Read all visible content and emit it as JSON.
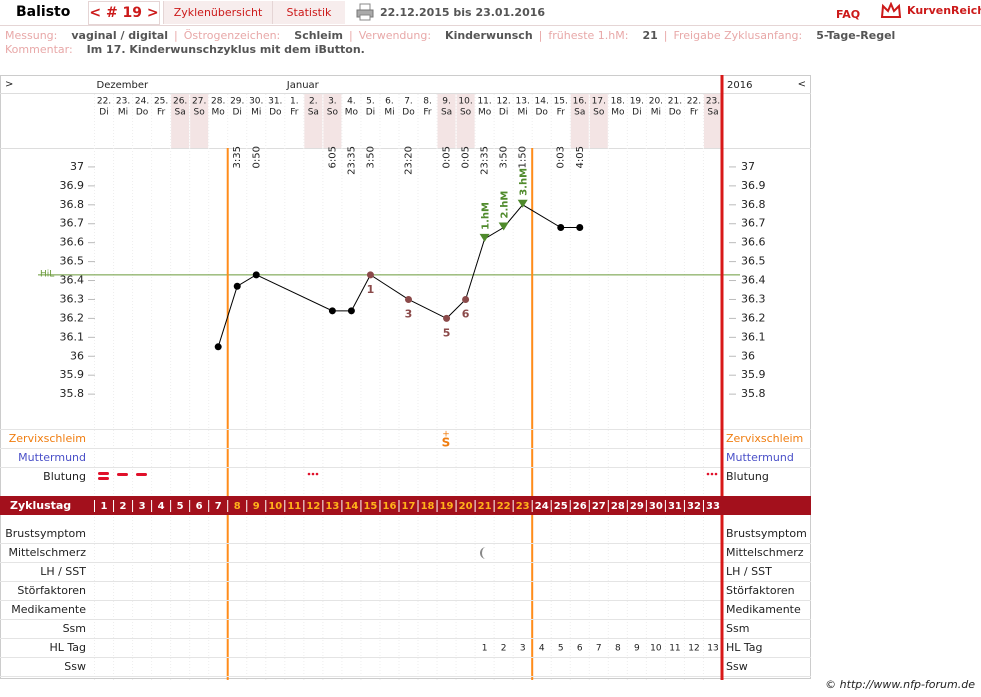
{
  "header": {
    "user": "Balisto",
    "cycle": "< # 19 >",
    "tabs": [
      "Zyklenübersicht",
      "Statistik"
    ],
    "range": "22.12.2015 bis 23.01.2016",
    "faq": "FAQ",
    "logo": "KurvenReich"
  },
  "info": {
    "items": [
      {
        "label": "Messung:",
        "value": "vaginal / digital"
      },
      {
        "label": "Östrogenzeichen:",
        "value": "Schleim"
      },
      {
        "label": "Verwendung:",
        "value": "Kinderwunsch"
      },
      {
        "label": "früheste 1.hM:",
        "value": "21"
      },
      {
        "label": "Freigabe Zyklusanfang:",
        "value": "5-Tage-Regel"
      }
    ],
    "comment_label": "Kommentar:",
    "comment": "Im 17. Kinderwunschzyklus mit dem iButton."
  },
  "calendar": {
    "prev": ">",
    "next": "<",
    "months": [
      "Dezember",
      "Januar"
    ],
    "year": "2016",
    "weekend": [
      "Sa",
      "So"
    ],
    "dates": [
      "22.",
      "23.",
      "24.",
      "25.",
      "26.",
      "27.",
      "28.",
      "29.",
      "30.",
      "31.",
      "1.",
      "2.",
      "3.",
      "4.",
      "5.",
      "6.",
      "7.",
      "8.",
      "9.",
      "10.",
      "11.",
      "12.",
      "13.",
      "14.",
      "15.",
      "16.",
      "17.",
      "18.",
      "19.",
      "20.",
      "21.",
      "22.",
      "23."
    ],
    "weekdays": [
      "Di",
      "Mi",
      "Do",
      "Fr",
      "Sa",
      "So",
      "Mo",
      "Di",
      "Mi",
      "Do",
      "Fr",
      "Sa",
      "So",
      "Mo",
      "Di",
      "Mi",
      "Do",
      "Fr",
      "Sa",
      "So",
      "Mo",
      "Di",
      "Mi",
      "Do",
      "Fr",
      "Sa",
      "So",
      "Mo",
      "Di",
      "Mi",
      "Do",
      "Fr",
      "Sa"
    ],
    "times": [
      null,
      null,
      null,
      null,
      null,
      null,
      null,
      "3:35",
      "0:50",
      null,
      null,
      null,
      "6:05",
      "23:35",
      "3:50",
      null,
      "23:20",
      null,
      "0:05",
      "0:05",
      "23:35",
      "3:50",
      "1:50",
      null,
      "0:03",
      "4:05",
      null,
      null,
      null,
      null,
      null,
      null,
      null
    ]
  },
  "chart_data": {
    "type": "line",
    "x": [
      7,
      8,
      9,
      13,
      14,
      15,
      17,
      19,
      20,
      21,
      22,
      23,
      25,
      26
    ],
    "values": [
      36.05,
      36.37,
      36.43,
      36.24,
      36.24,
      36.43,
      36.3,
      36.2,
      36.3,
      36.62,
      36.68,
      36.8,
      36.68,
      36.68
    ],
    "point_labels": [
      null,
      null,
      null,
      null,
      null,
      "1",
      "3",
      "5",
      "6",
      null,
      null,
      null,
      null,
      null
    ],
    "hm_labels": [
      null,
      null,
      null,
      null,
      null,
      null,
      null,
      null,
      null,
      "1.hM",
      "2.hM",
      "3.hM",
      null,
      null
    ],
    "color": "#000000",
    "label_color": "#8b4a4a",
    "hm_color": "#4f8a2b",
    "xlim": [
      0.5,
      33.5
    ],
    "xticks": [
      1,
      2,
      3,
      4,
      5,
      6,
      7,
      8,
      9,
      10,
      11,
      12,
      13,
      14,
      15,
      16,
      17,
      18,
      19,
      20,
      21,
      22,
      23,
      24,
      25,
      26,
      27,
      28,
      29,
      30,
      31,
      32,
      33
    ],
    "xtick_label": "Zyklustag",
    "ylim": [
      35.6,
      37.1
    ],
    "yticks": [
      37,
      36.9,
      36.8,
      36.7,
      36.6,
      36.5,
      36.4,
      36.3,
      36.2,
      36.1,
      36,
      35.9,
      35.8
    ],
    "grid": false,
    "hil": 36.43,
    "hil_label": "HiL",
    "hil_color": "#6a9a3a",
    "window": {
      "first": 8,
      "last": 23,
      "color": "#ff8c1a"
    }
  },
  "rows": {
    "upper": [
      {
        "name": "Zervixschleim",
        "color": "#f07d10"
      },
      {
        "name": "Muttermund",
        "color": "#4a50c8"
      },
      {
        "name": "Blutung",
        "color": "#222222"
      }
    ],
    "lower": [
      "Brustsymptom",
      "Mittelschmerz",
      "LH / SST",
      "Störfaktoren",
      "Medikamente",
      "Ssm",
      "HL Tag",
      "Ssw"
    ],
    "cervix": {
      "sign": "+",
      "symbol": "S"
    },
    "hl_tag": [
      null,
      null,
      null,
      null,
      null,
      null,
      null,
      null,
      null,
      null,
      null,
      null,
      null,
      null,
      null,
      null,
      null,
      null,
      null,
      null,
      1,
      2,
      3,
      4,
      5,
      6,
      7,
      8,
      9,
      10,
      11,
      12,
      13
    ]
  },
  "footer": "© http://www.nfp-forum.de"
}
